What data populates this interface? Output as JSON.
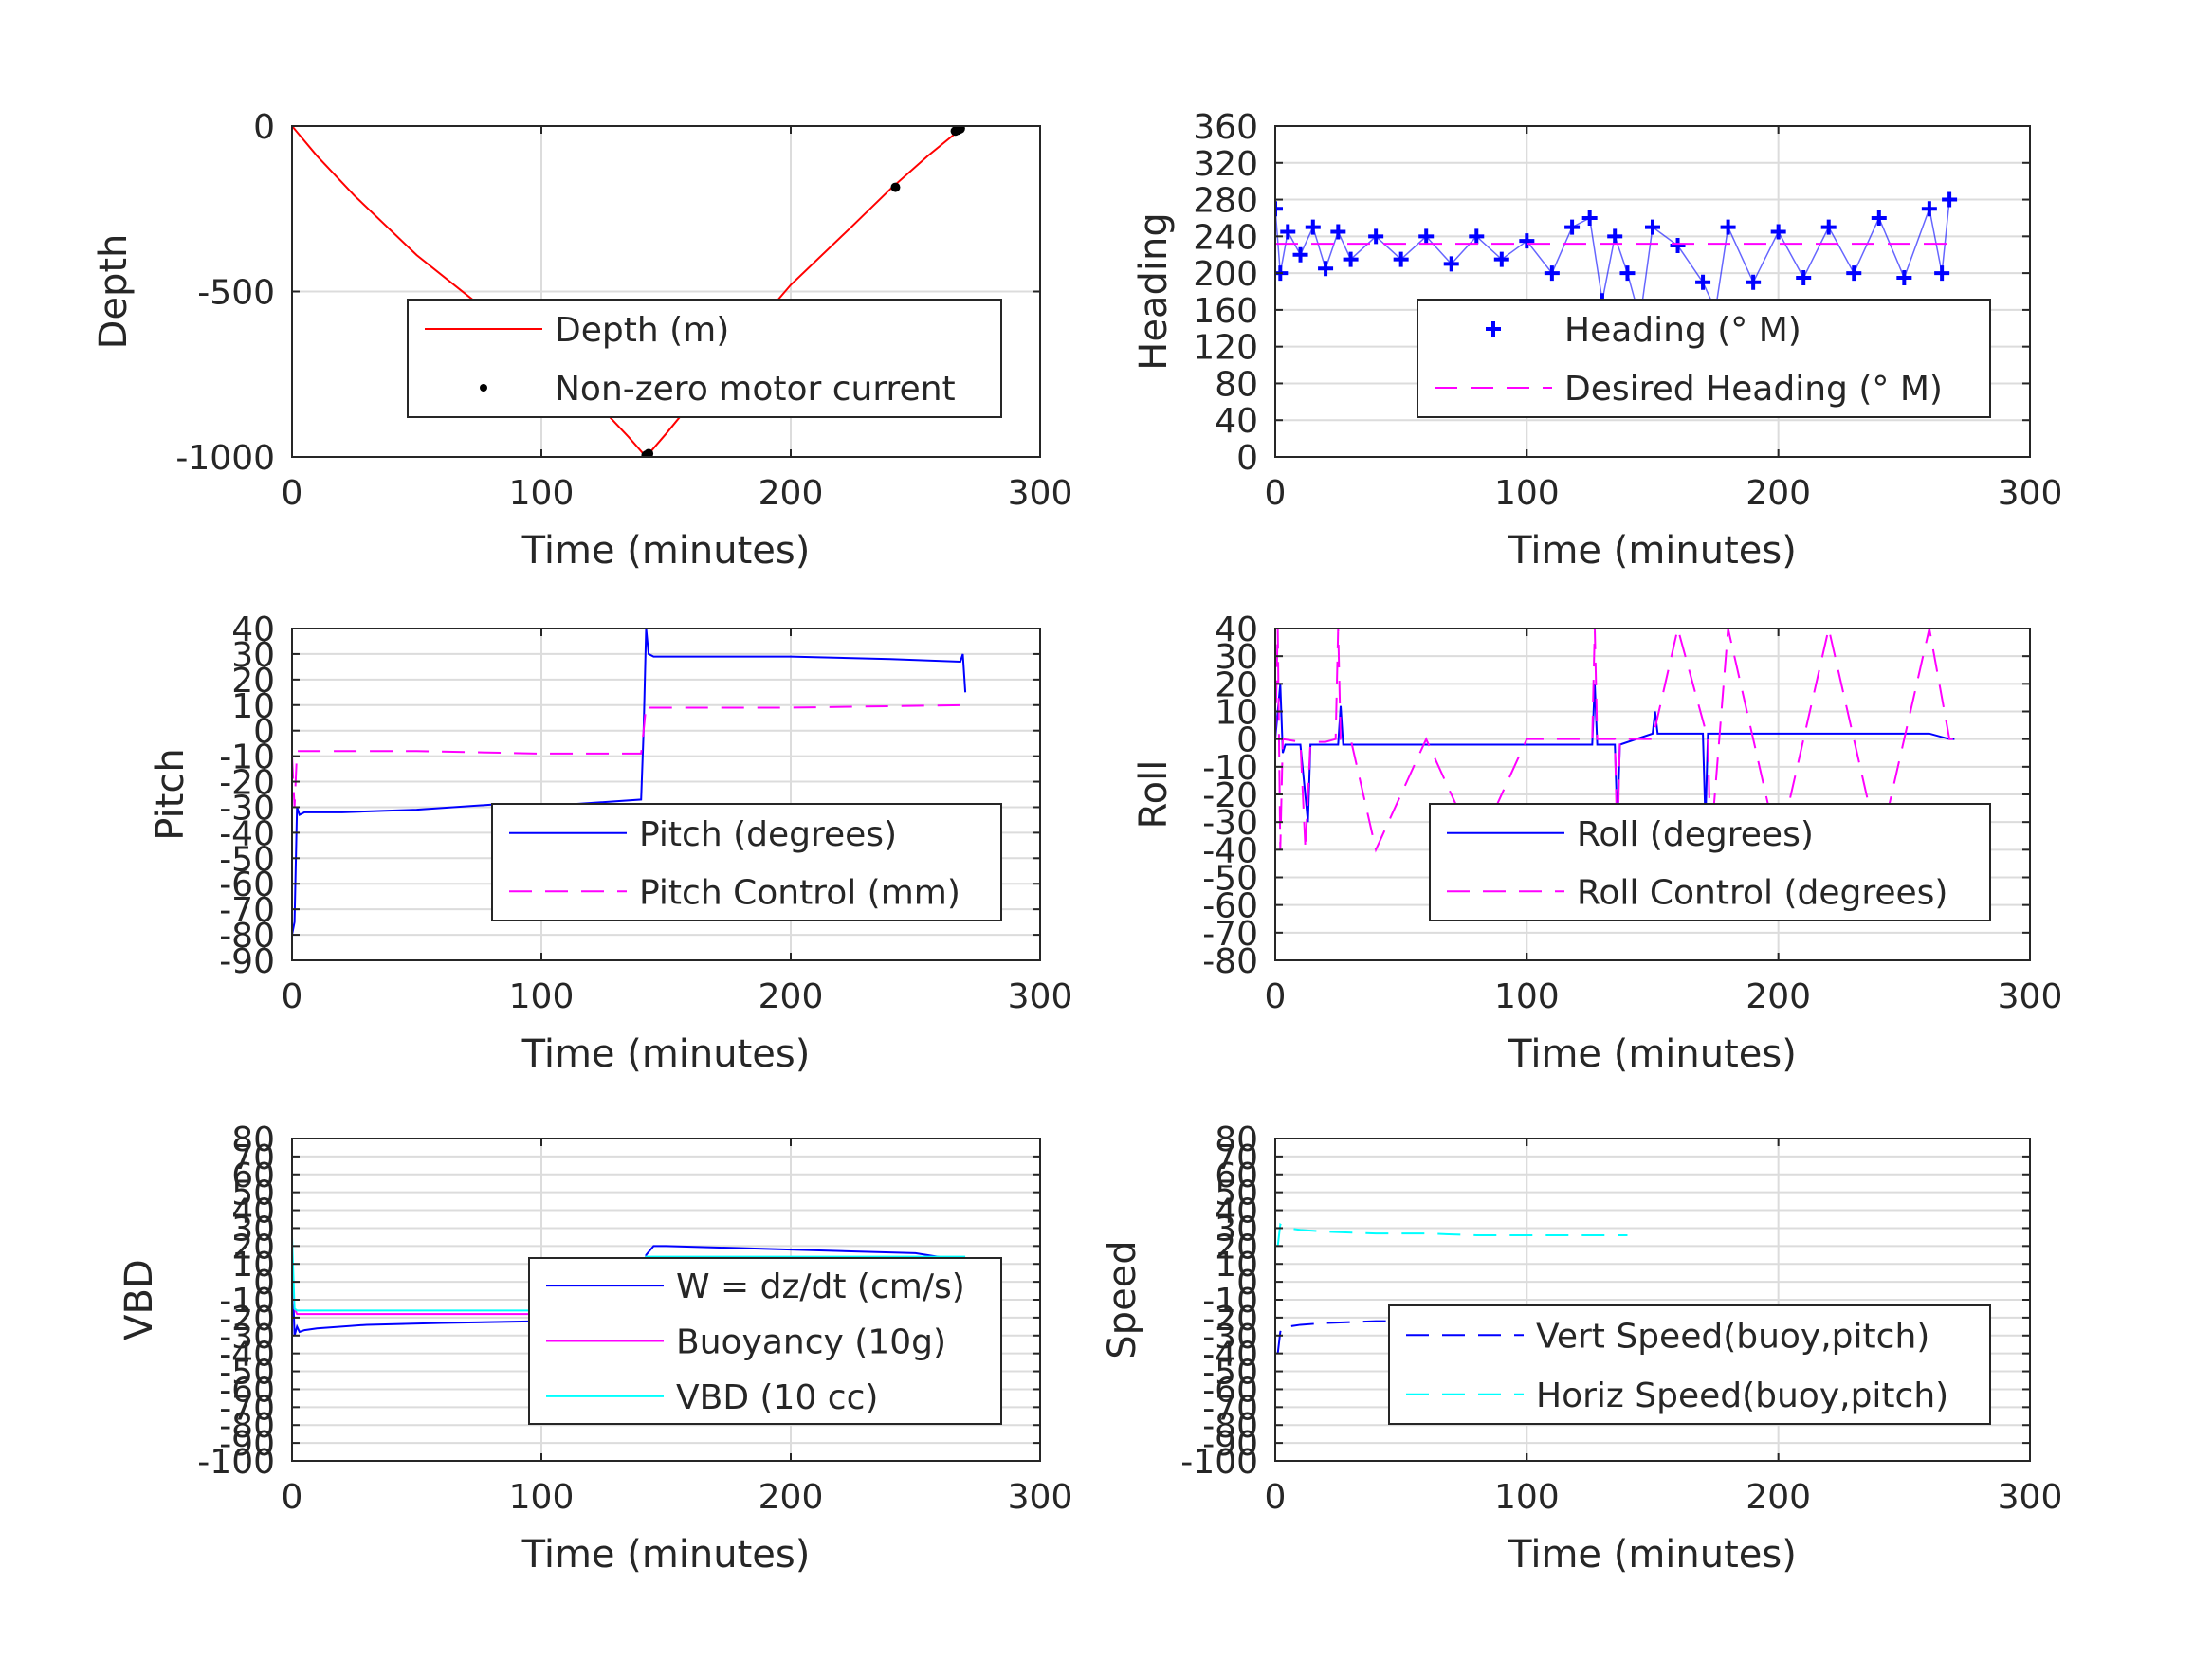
{
  "chart_data": [
    {
      "id": "depth",
      "type": "line",
      "xlabel": "Time (minutes)",
      "ylabel": "Depth",
      "xlim": [
        0,
        300
      ],
      "ylim": [
        -1000,
        0
      ],
      "xticks": [
        0,
        100,
        200,
        300
      ],
      "xtick_labels": [
        "0",
        "100",
        "200",
        "300"
      ],
      "yticks": [
        0,
        -500,
        -1000
      ],
      "ytick_labels": [
        "0",
        "-500",
        "-1000"
      ],
      "grid": true,
      "legend": {
        "placement": "center-right",
        "entries": [
          "Depth (m)",
          "Non-zero motor current"
        ]
      },
      "series": [
        {
          "name": "Depth (m)",
          "style": "solid",
          "color": "#ff0000",
          "x": [
            0,
            10,
            25,
            50,
            75,
            100,
            120,
            135,
            142,
            150,
            175,
            200,
            225,
            240,
            255,
            268
          ],
          "y": [
            0,
            -90,
            -210,
            -390,
            -540,
            -680,
            -820,
            -940,
            -1000,
            -930,
            -700,
            -480,
            -300,
            -190,
            -90,
            -10
          ]
        },
        {
          "name": "Non-zero motor current",
          "style": "markers",
          "color": "#000000",
          "x": [
            142,
            143,
            242,
            266,
            267,
            268
          ],
          "y": [
            -995,
            -990,
            -185,
            -15,
            -12,
            -8
          ]
        }
      ]
    },
    {
      "id": "heading",
      "type": "scatter",
      "xlabel": "Time (minutes)",
      "ylabel": "Heading",
      "xlim": [
        0,
        300
      ],
      "ylim": [
        0,
        360
      ],
      "xticks": [
        0,
        100,
        200,
        300
      ],
      "xtick_labels": [
        "0",
        "100",
        "200",
        "300"
      ],
      "yticks": [
        0,
        40,
        80,
        120,
        160,
        200,
        240,
        280,
        320,
        360
      ],
      "ytick_labels": [
        "0",
        "40",
        "80",
        "120",
        "160",
        "200",
        "240",
        "280",
        "320",
        "360"
      ],
      "grid": true,
      "legend": {
        "placement": "lower-right",
        "entries": [
          "Heading (° M)",
          "Desired Heading (° M)"
        ]
      },
      "series": [
        {
          "name": "Heading (° M)",
          "style": "plus-markers",
          "color": "#0000ff",
          "x": [
            0,
            2,
            5,
            10,
            15,
            20,
            25,
            30,
            40,
            50,
            60,
            70,
            80,
            90,
            100,
            110,
            118,
            125,
            130,
            135,
            140,
            145,
            150,
            160,
            170,
            175,
            180,
            190,
            200,
            210,
            220,
            230,
            240,
            250,
            260,
            265,
            268
          ],
          "y": [
            270,
            200,
            245,
            220,
            250,
            205,
            245,
            215,
            240,
            215,
            240,
            210,
            240,
            215,
            235,
            200,
            250,
            260,
            170,
            240,
            200,
            150,
            250,
            230,
            190,
            160,
            250,
            190,
            245,
            195,
            250,
            200,
            260,
            195,
            270,
            200,
            280
          ]
        },
        {
          "name": "Desired Heading (° M)",
          "style": "dashed",
          "color": "#ff00ff",
          "x": [
            0,
            270
          ],
          "y": [
            232,
            232
          ]
        }
      ]
    },
    {
      "id": "pitch",
      "type": "line",
      "xlabel": "Time (minutes)",
      "ylabel": "Pitch",
      "xlim": [
        0,
        300
      ],
      "ylim": [
        -90,
        40
      ],
      "xticks": [
        0,
        100,
        200,
        300
      ],
      "xtick_labels": [
        "0",
        "100",
        "200",
        "300"
      ],
      "yticks": [
        40,
        30,
        20,
        10,
        0,
        -10,
        -20,
        -30,
        -40,
        -50,
        -60,
        -70,
        -80,
        -90
      ],
      "ytick_labels": [
        "40",
        "30",
        "20",
        "10",
        "0",
        "-10",
        "-20",
        "-30",
        "-40",
        "-50",
        "-60",
        "-70",
        "-80",
        "-90"
      ],
      "grid": true,
      "legend": {
        "placement": "lower-right",
        "entries": [
          "Pitch (degrees)",
          "Pitch Control (mm)"
        ]
      },
      "series": [
        {
          "name": "Pitch (degrees)",
          "style": "solid",
          "color": "#0000ff",
          "x": [
            0,
            1,
            2,
            3,
            5,
            20,
            50,
            80,
            110,
            140,
            141,
            142,
            143,
            145,
            160,
            200,
            240,
            268,
            269,
            270
          ],
          "y": [
            -80,
            -75,
            -30,
            -33,
            -32,
            -32,
            -31,
            -29,
            -29,
            -27,
            0,
            40,
            30,
            29,
            29,
            29,
            28,
            27,
            30,
            15
          ]
        },
        {
          "name": "Pitch Control (mm)",
          "style": "dashed",
          "color": "#ff00ff",
          "x": [
            0,
            1,
            2,
            50,
            100,
            140,
            141,
            142,
            143,
            200,
            270
          ],
          "y": [
            -10,
            -30,
            -8,
            -8,
            -9,
            -9,
            0,
            10,
            9,
            9,
            10
          ]
        }
      ]
    },
    {
      "id": "roll",
      "type": "line",
      "xlabel": "Time (minutes)",
      "ylabel": "Roll",
      "xlim": [
        0,
        300
      ],
      "ylim": [
        -80,
        40
      ],
      "xticks": [
        0,
        100,
        200,
        300
      ],
      "xtick_labels": [
        "0",
        "100",
        "200",
        "300"
      ],
      "yticks": [
        40,
        30,
        20,
        10,
        0,
        -10,
        -20,
        -30,
        -40,
        -50,
        -60,
        -70,
        -80
      ],
      "ytick_labels": [
        "40",
        "30",
        "20",
        "10",
        "0",
        "-10",
        "-20",
        "-30",
        "-40",
        "-50",
        "-60",
        "-70",
        "-80"
      ],
      "grid": true,
      "legend": {
        "placement": "lower-right",
        "entries": [
          "Roll (degrees)",
          "Roll Control (degrees)"
        ]
      },
      "series": [
        {
          "name": "Roll (degrees)",
          "style": "solid",
          "color": "#0000ff",
          "x": [
            0,
            2,
            3,
            4,
            10,
            13,
            14,
            20,
            25,
            26,
            27,
            35,
            44,
            53,
            63,
            72,
            82,
            92,
            102,
            112,
            126,
            127,
            128,
            135,
            136,
            137,
            150,
            151,
            152,
            170,
            171,
            172,
            200,
            230,
            260,
            268,
            270
          ],
          "y": [
            0,
            20,
            -5,
            -2,
            -2,
            -30,
            -2,
            -2,
            -2,
            12,
            -2,
            -2,
            -2,
            -2,
            -2,
            -2,
            -2,
            -2,
            -2,
            -2,
            -2,
            20,
            -2,
            -2,
            -30,
            -2,
            2,
            10,
            2,
            2,
            -30,
            2,
            2,
            2,
            2,
            0,
            0
          ]
        },
        {
          "name": "Roll Control (degrees)",
          "style": "dashed",
          "color": "#ff00ff",
          "x": [
            0,
            1,
            2,
            3,
            10,
            12,
            14,
            20,
            24,
            25,
            26,
            30,
            40,
            60,
            80,
            100,
            126,
            127,
            128,
            135,
            136,
            137,
            150,
            160,
            172,
            173,
            180,
            200,
            220,
            240,
            260,
            268,
            270
          ],
          "y": [
            0,
            40,
            -40,
            0,
            -1,
            -40,
            -1,
            -1,
            0,
            40,
            0,
            0,
            -40,
            0,
            -40,
            0,
            0,
            40,
            0,
            0,
            -40,
            0,
            0,
            40,
            0,
            -40,
            40,
            -40,
            40,
            -40,
            40,
            0,
            0
          ]
        }
      ]
    },
    {
      "id": "vbd",
      "type": "line",
      "xlabel": "Time (minutes)",
      "ylabel": "VBD",
      "xlim": [
        0,
        300
      ],
      "ylim": [
        -100,
        80
      ],
      "xticks": [
        0,
        100,
        200,
        300
      ],
      "xtick_labels": [
        "0",
        "100",
        "200",
        "300"
      ],
      "yticks": [
        80,
        70,
        60,
        50,
        40,
        30,
        20,
        10,
        0,
        -10,
        -20,
        -30,
        -40,
        -50,
        -60,
        -70,
        -80,
        -90,
        -100
      ],
      "ytick_labels": [
        "80",
        "70",
        "60",
        "50",
        "40",
        "30",
        "20",
        "10",
        "0",
        "-10",
        "-20",
        "-30",
        "-40",
        "-50",
        "-60",
        "-70",
        "-80",
        "-90",
        "-100"
      ],
      "grid": true,
      "legend": {
        "placement": "center-right",
        "entries": [
          "W = dz/dt (cm/s)",
          "Buoyancy (10g)",
          "VBD (10 cc)"
        ]
      },
      "series": [
        {
          "name": "W = dz/dt (cm/s)",
          "style": "solid",
          "color": "#0000ff",
          "x": [
            0,
            1,
            2,
            3,
            5,
            10,
            30,
            60,
            100,
            140,
            141,
            142,
            145,
            150,
            200,
            250,
            268,
            270
          ],
          "y": [
            15,
            -30,
            -25,
            -28,
            -27,
            -26,
            -24,
            -23,
            -22,
            -21,
            0,
            15,
            20,
            20,
            18,
            16,
            12,
            10
          ]
        },
        {
          "name": "Buoyancy (10g)",
          "style": "solid",
          "color": "#ff00ff",
          "x": [
            0,
            1,
            2,
            10,
            140,
            141,
            142,
            270
          ],
          "y": [
            0,
            -15,
            -18,
            -18,
            -18,
            0,
            13,
            13
          ]
        },
        {
          "name": "VBD (10 cc)",
          "style": "solid",
          "color": "#00ffff",
          "x": [
            0,
            1,
            2,
            10,
            140,
            141,
            142,
            270
          ],
          "y": [
            25,
            -15,
            -16,
            -16,
            -16,
            0,
            14,
            14
          ]
        }
      ]
    },
    {
      "id": "speed",
      "type": "line",
      "xlabel": "Time (minutes)",
      "ylabel": "Speed",
      "xlim": [
        0,
        300
      ],
      "ylim": [
        -100,
        80
      ],
      "xticks": [
        0,
        100,
        200,
        300
      ],
      "xtick_labels": [
        "0",
        "100",
        "200",
        "300"
      ],
      "yticks": [
        80,
        70,
        60,
        50,
        40,
        30,
        20,
        10,
        0,
        -10,
        -20,
        -30,
        -40,
        -50,
        -60,
        -70,
        -80,
        -90,
        -100
      ],
      "ytick_labels": [
        "80",
        "70",
        "60",
        "50",
        "40",
        "30",
        "20",
        "10",
        "0",
        "-10",
        "-20",
        "-30",
        "-40",
        "-50",
        "-60",
        "-70",
        "-80",
        "-90",
        "-100"
      ],
      "grid": true,
      "legend": {
        "placement": "lower-right",
        "entries": [
          "Vert Speed(buoy,pitch)",
          "Horiz Speed(buoy,pitch)"
        ]
      },
      "series": [
        {
          "name": "Vert Speed(buoy,pitch)",
          "style": "dashed",
          "color": "#0000ff",
          "x": [
            1,
            2,
            3,
            5,
            10,
            20,
            40,
            60,
            80,
            100,
            120,
            140
          ],
          "y": [
            -40,
            -28,
            -25,
            -25,
            -24,
            -23,
            -22,
            -22,
            -21,
            -21,
            -21,
            -20
          ]
        },
        {
          "name": "Horiz Speed(buoy,pitch)",
          "style": "dashed",
          "color": "#00ffff",
          "x": [
            1,
            2,
            3,
            5,
            10,
            20,
            40,
            60,
            80,
            100,
            120,
            140
          ],
          "y": [
            20,
            32,
            31,
            30,
            29,
            28,
            27,
            27,
            26,
            26,
            26,
            26
          ]
        }
      ]
    }
  ]
}
